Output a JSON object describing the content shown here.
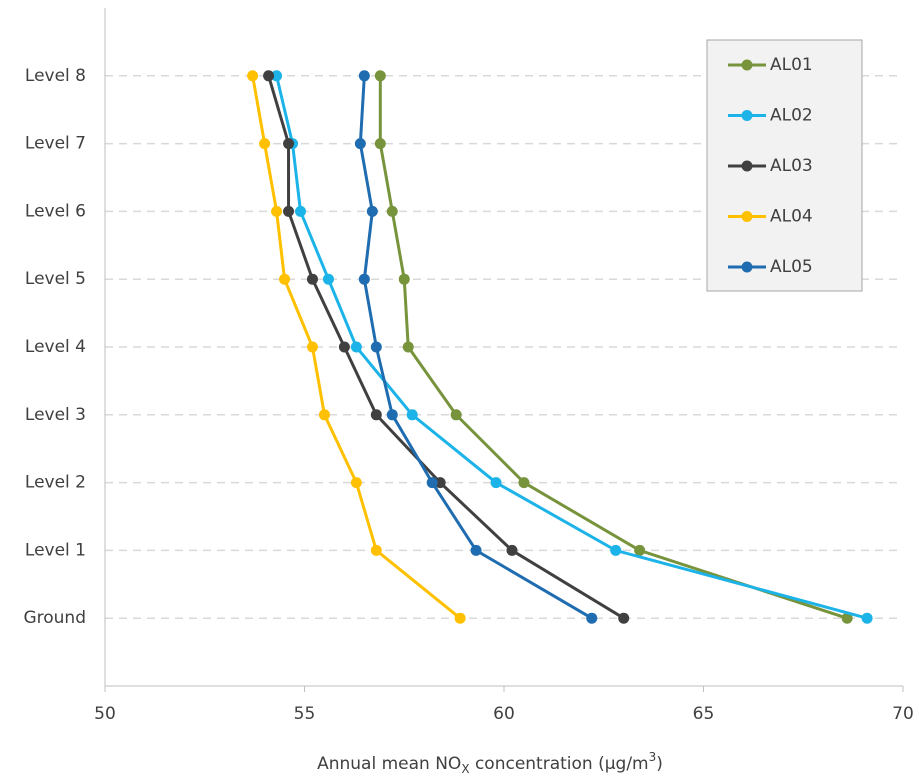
{
  "chart_data": {
    "type": "line",
    "categories": [
      "Ground",
      "Level 1",
      "Level 2",
      "Level 3",
      "Level 4",
      "Level 5",
      "Level 6",
      "Level 7",
      "Level 8"
    ],
    "series": [
      {
        "name": "AL01",
        "color": "#77933c",
        "values": [
          68.6,
          63.4,
          60.5,
          58.8,
          57.6,
          57.5,
          57.2,
          56.9,
          56.9
        ]
      },
      {
        "name": "AL02",
        "color": "#1cb3e8",
        "values": [
          69.1,
          62.8,
          59.8,
          57.7,
          56.3,
          55.6,
          54.9,
          54.7,
          54.3
        ]
      },
      {
        "name": "AL03",
        "color": "#404040",
        "values": [
          63.0,
          60.2,
          58.4,
          56.8,
          56.0,
          55.2,
          54.6,
          54.6,
          54.1
        ]
      },
      {
        "name": "AL04",
        "color": "#ffc000",
        "values": [
          58.9,
          56.8,
          56.3,
          55.5,
          55.2,
          54.5,
          54.3,
          54.0,
          53.7
        ]
      },
      {
        "name": "AL05",
        "color": "#1f6cb0",
        "values": [
          62.2,
          59.3,
          58.2,
          57.2,
          56.8,
          56.5,
          56.7,
          56.4,
          56.5
        ]
      }
    ],
    "xlim": [
      50,
      70
    ],
    "xticks": [
      50,
      55,
      60,
      65,
      70
    ],
    "x_label": [
      {
        "text": "Annual mean NO"
      },
      {
        "text": "X",
        "style": "sub"
      },
      {
        "text": " concentration (µg/m"
      },
      {
        "text": "3",
        "style": "sup"
      },
      {
        "text": ")"
      }
    ],
    "grid": true,
    "legend": "upper right"
  }
}
